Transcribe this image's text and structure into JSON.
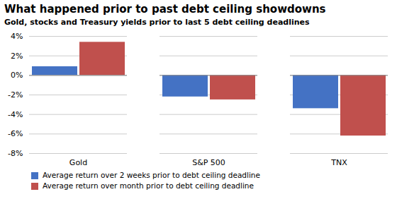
{
  "chart_data": {
    "type": "bar",
    "title": "What happened prior to past debt ceiling showdowns",
    "subtitle": "Gold, stocks and Treasury yields prior to last 5 debt ceiling deadlines",
    "categories": [
      "Gold",
      "S&P 500",
      "TNX"
    ],
    "series": [
      {
        "name": "Average return over 2 weeks prior to debt ceiling deadline",
        "color": "#4472C4",
        "values": [
          0.9,
          -2.2,
          -3.4
        ]
      },
      {
        "name": "Average return over month prior to debt ceiling deadline",
        "color": "#C0504D",
        "values": [
          3.4,
          -2.5,
          -6.2
        ]
      }
    ],
    "ylim": [
      -8,
      4
    ],
    "yticks": [
      {
        "value": -8,
        "label": "-8%"
      },
      {
        "value": -6,
        "label": "-6%"
      },
      {
        "value": -4,
        "label": "-4%"
      },
      {
        "value": -2,
        "label": "-2%"
      },
      {
        "value": 0,
        "label": "0%"
      },
      {
        "value": 2,
        "label": "2%"
      },
      {
        "value": 4,
        "label": "4%"
      }
    ],
    "grid": true,
    "legend": "bottom"
  }
}
